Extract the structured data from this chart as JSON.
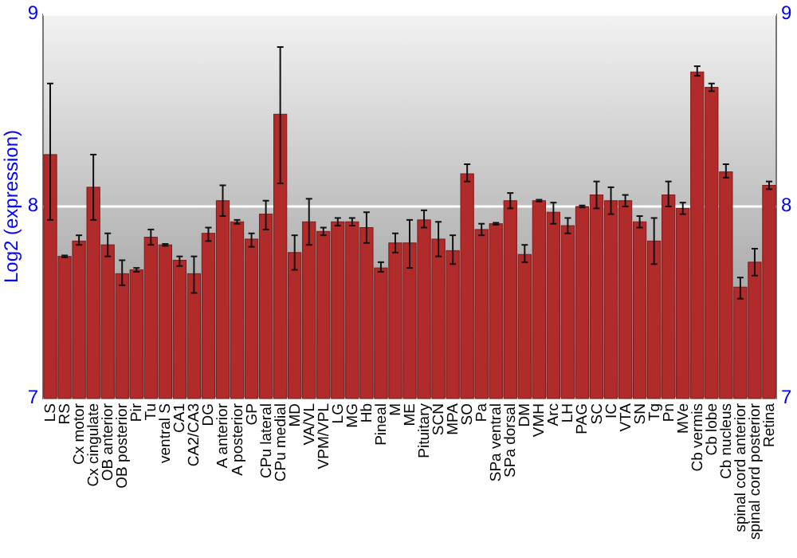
{
  "chart_data": {
    "type": "bar",
    "ylabel": "Log2 (expression)",
    "categories": [
      "LS",
      "RS",
      "Cx motor",
      "Cx cingulate",
      "OB anterior",
      "OB posterior",
      "Pir",
      "Tu",
      "ventral S",
      "CA1",
      "CA2/CA3",
      "DG",
      "A anterior",
      "A posterior",
      "GP",
      "CPu lateral",
      "CPu medial",
      "MD",
      "VA/VL",
      "VPM/VPL",
      "LG",
      "MG",
      "Hb",
      "Pineal",
      "M",
      "ME",
      "Pituitary",
      "SCN",
      "MPA",
      "SO",
      "Pa",
      "SPa ventral",
      "SPa dorsal",
      "DM",
      "VMH",
      "Arc",
      "LH",
      "PAG",
      "SC",
      "IC",
      "VTA",
      "SN",
      "Tg",
      "Pn",
      "MVe",
      "Cb vermis",
      "Cb lobe",
      "Cb nucleus",
      "spinal cord anterior",
      "spinal cord posterior",
      "Retina"
    ],
    "values": [
      8.27,
      7.74,
      7.82,
      8.1,
      7.8,
      7.65,
      7.67,
      7.84,
      7.8,
      7.72,
      7.65,
      7.86,
      8.03,
      7.92,
      7.83,
      7.96,
      8.48,
      7.76,
      7.92,
      7.87,
      7.92,
      7.92,
      7.89,
      7.68,
      7.81,
      7.81,
      7.93,
      7.83,
      7.77,
      8.17,
      7.88,
      7.91,
      8.03,
      7.75,
      8.03,
      7.97,
      7.9,
      8.0,
      8.06,
      8.03,
      8.03,
      7.92,
      7.82,
      8.06,
      7.99,
      8.7,
      8.62,
      8.18,
      7.58,
      7.71,
      8.11
    ],
    "errors": [
      [
        7.93,
        8.64
      ],
      0.005,
      [
        7.8,
        7.85
      ],
      [
        7.93,
        8.27
      ],
      [
        7.74,
        7.86
      ],
      [
        7.59,
        7.72
      ],
      0.01,
      [
        7.8,
        7.88
      ],
      0.005,
      [
        7.69,
        7.74
      ],
      [
        7.55,
        7.74
      ],
      [
        7.82,
        7.89
      ],
      [
        7.95,
        8.11
      ],
      0.01,
      [
        7.79,
        7.86
      ],
      [
        7.88,
        8.03
      ],
      [
        8.12,
        8.83
      ],
      [
        7.67,
        7.85
      ],
      [
        7.8,
        8.04
      ],
      0.02,
      0.02,
      0.02,
      [
        7.81,
        7.97
      ],
      [
        7.66,
        7.71
      ],
      [
        7.76,
        7.86
      ],
      [
        7.68,
        7.93
      ],
      [
        7.89,
        7.98
      ],
      [
        7.74,
        7.92
      ],
      [
        7.7,
        7.85
      ],
      [
        8.13,
        8.22
      ],
      [
        7.85,
        7.91
      ],
      0.005,
      [
        7.99,
        8.07
      ],
      [
        7.71,
        7.8
      ],
      0.005,
      [
        7.91,
        8.02
      ],
      [
        7.86,
        7.94
      ],
      0.005,
      [
        7.99,
        8.13
      ],
      [
        7.96,
        8.1
      ],
      [
        8.0,
        8.06
      ],
      [
        7.89,
        7.95
      ],
      [
        7.7,
        7.94
      ],
      [
        8.0,
        8.13
      ],
      [
        7.96,
        8.02
      ],
      [
        8.68,
        8.73
      ],
      [
        8.6,
        8.64
      ],
      [
        8.15,
        8.22
      ],
      [
        7.52,
        7.63
      ],
      [
        7.64,
        7.78
      ],
      [
        8.09,
        8.13
      ]
    ],
    "color": "#b22b2b",
    "ylim": [
      7,
      9
    ],
    "yticks": [
      7,
      8,
      9
    ],
    "y2lim": [
      7,
      9
    ],
    "y2ticks": [
      7,
      8,
      9
    ],
    "grid": "y"
  }
}
